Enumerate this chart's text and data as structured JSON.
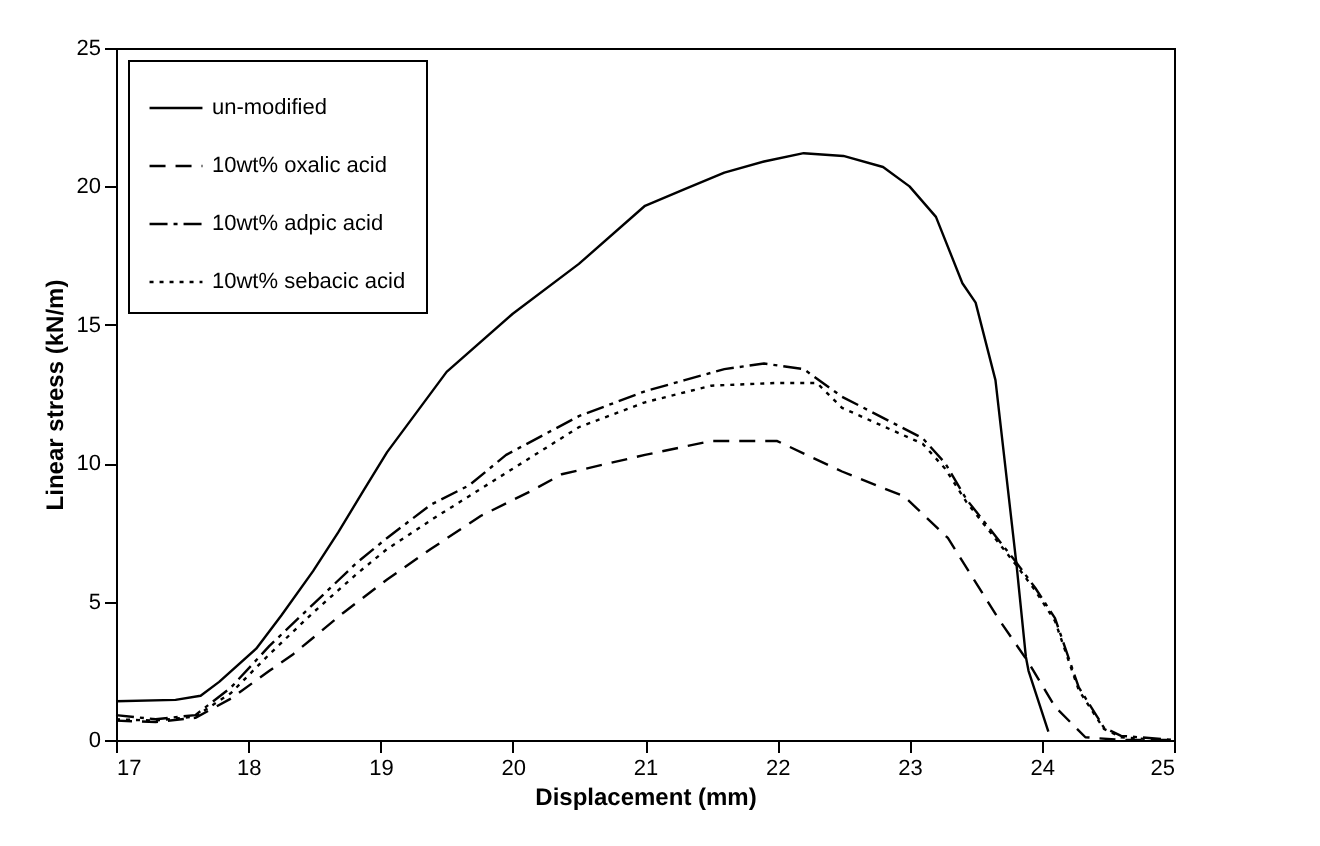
{
  "chart_data": {
    "type": "line",
    "xlabel": "Displacement (mm)",
    "ylabel": "Linear stress (kN/m)",
    "xlim": [
      17,
      25
    ],
    "ylim": [
      0,
      25
    ],
    "xticks": [
      17,
      18,
      19,
      20,
      21,
      22,
      23,
      24,
      25
    ],
    "yticks": [
      0,
      5,
      10,
      15,
      20,
      25
    ],
    "legend": "top left",
    "marker": "none",
    "series": [
      {
        "name": "un-modified",
        "color": "#000000",
        "line_style": "solid",
        "x": [
          17,
          17.45,
          17.64,
          17.78,
          18.06,
          18.25,
          18.49,
          18.68,
          18.87,
          19.05,
          19.5,
          20,
          20.5,
          21,
          21.3,
          21.6,
          21.9,
          22.2,
          22.5,
          22.8,
          23,
          23.2,
          23.4,
          23.5,
          23.65,
          23.81,
          23.88,
          23.9,
          24.05
        ],
        "values": [
          1.4,
          1.45,
          1.6,
          2.1,
          3.3,
          4.5,
          6.1,
          7.5,
          9,
          10.4,
          13.3,
          15.4,
          17.2,
          19.3,
          19.9,
          20.5,
          20.9,
          21.2,
          21.1,
          20.7,
          20,
          18.9,
          16.5,
          15.8,
          13,
          6.3,
          3,
          2.5,
          0.3
        ]
      },
      {
        "name": "10wt% oxalic acid",
        "color": "#000000",
        "line_style": "dashed",
        "x": [
          17,
          17.3,
          17.6,
          17.87,
          18.16,
          18.34,
          18.72,
          19.05,
          19.38,
          19.76,
          20.14,
          20.37,
          21,
          21.5,
          22,
          22.49,
          22.96,
          23.29,
          23.67,
          23.9,
          24.1,
          24.33,
          24.6,
          25
        ],
        "values": [
          0.7,
          0.65,
          0.8,
          1.5,
          2.5,
          3.1,
          4.6,
          5.8,
          6.9,
          8.1,
          9,
          9.6,
          10.3,
          10.8,
          10.8,
          9.7,
          8.8,
          7.3,
          4.4,
          2.8,
          1.2,
          0.1,
          0,
          0
        ]
      },
      {
        "name": "10wt% adpic acid",
        "color": "#000000",
        "line_style": "dashdot",
        "x": [
          17,
          17.3,
          17.6,
          17.87,
          18.16,
          18.49,
          18.82,
          19.05,
          19.38,
          19.67,
          19.95,
          20.5,
          21,
          21.3,
          21.6,
          21.9,
          22.2,
          22.49,
          23.1,
          23.27,
          23.43,
          23.81,
          23.95,
          24.1,
          24.28,
          24.47,
          24.6,
          25
        ],
        "values": [
          0.9,
          0.75,
          0.9,
          1.9,
          3.4,
          4.9,
          6.4,
          7.3,
          8.5,
          9.2,
          10.3,
          11.7,
          12.6,
          13,
          13.4,
          13.6,
          13.4,
          12.4,
          10.9,
          10,
          8.7,
          6.4,
          5.5,
          4.4,
          1.9,
          0.45,
          0.15,
          0
        ]
      },
      {
        "name": "10wt% sebacic acid",
        "color": "#000000",
        "line_style": "dotted",
        "x": [
          17,
          17.3,
          17.6,
          17.87,
          18.16,
          18.49,
          18.82,
          19.05,
          19.4,
          19.7,
          20,
          20.5,
          21,
          21.5,
          22,
          22.3,
          22.49,
          23.1,
          23.27,
          23.43,
          23.81,
          23.95,
          24.1,
          24.28,
          24.47,
          24.6,
          24.9
        ],
        "values": [
          0.75,
          0.7,
          0.85,
          1.7,
          3.1,
          4.6,
          6,
          6.9,
          8,
          8.9,
          9.8,
          11.3,
          12.2,
          12.8,
          12.9,
          12.9,
          12,
          10.7,
          9.8,
          8.6,
          6.3,
          5.4,
          4.3,
          1.8,
          0.4,
          0.1,
          0
        ]
      }
    ]
  }
}
